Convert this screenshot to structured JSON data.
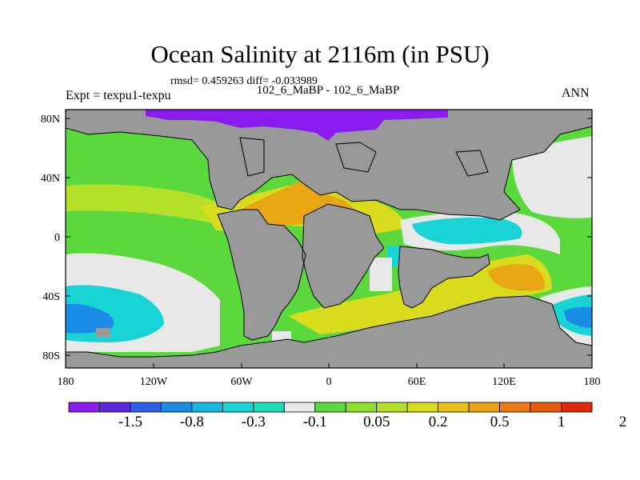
{
  "title": "Ocean Salinity at 2116m (in PSU)",
  "stats": "rmsd= 0.459263 diff= -0.033989",
  "subtitle": "102_6_MaBP - 102_6_MaBP",
  "left_label": "Expt = texpu1-texpu",
  "right_label": "ANN",
  "axes": {
    "lat_ticks": [
      "80N",
      "40N",
      "0",
      "40S",
      "80S"
    ],
    "lon_ticks": [
      "180",
      "120W",
      "60W",
      "0",
      "60E",
      "120E",
      "180"
    ]
  },
  "colorbar": {
    "colors": [
      "#8a1cf0",
      "#5a2ae0",
      "#2f5fe6",
      "#1a8ee6",
      "#16b8e0",
      "#19d4d4",
      "#1cdcb8",
      "#e8e8e8",
      "#5ad83c",
      "#8ee030",
      "#b4e02a",
      "#d8dc1c",
      "#e8c018",
      "#eca014",
      "#ec7a10",
      "#e85a0c",
      "#e0280a"
    ],
    "labels": [
      "-1.5",
      "-0.8",
      "-0.3",
      "-0.1",
      "0.05",
      "0.2",
      "0.5",
      "1",
      "2"
    ]
  },
  "palette": {
    "land": "#999999",
    "neutral": "#e8e8e8",
    "green": "#5ad83c",
    "yellow_green": "#b4e02a",
    "yellow": "#d8dc1c",
    "orange": "#e8a814",
    "cyan": "#19d4d4",
    "blue": "#1a8ee6",
    "purple": "#8a1cf0"
  }
}
